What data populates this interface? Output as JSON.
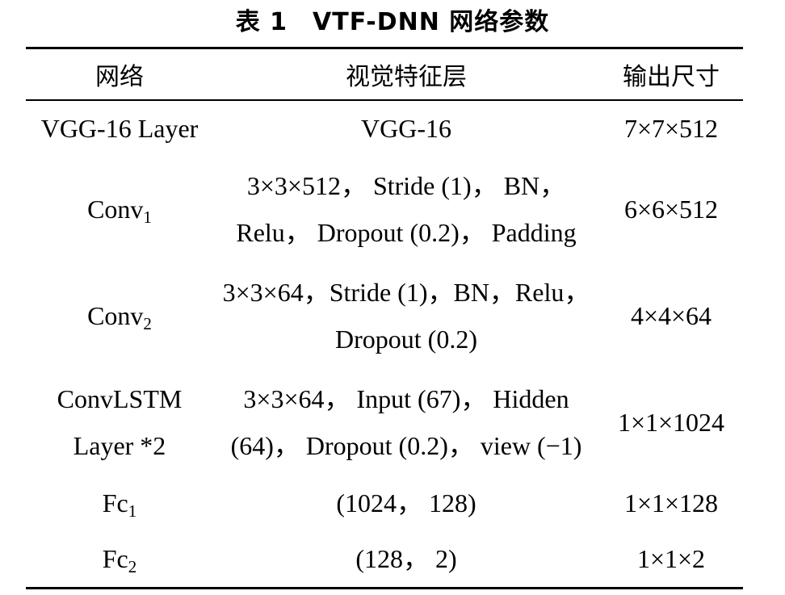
{
  "caption": "表 1　VTF-DNN 网络参数",
  "headers": {
    "network": "网络",
    "visual_layer": "视觉特征层",
    "output_size": "输出尺寸"
  },
  "rows": [
    {
      "name": "VGG-16 Layer",
      "layer": [
        "VGG-16"
      ],
      "output": "7×7×512"
    },
    {
      "name": "Conv",
      "name_sub": "1",
      "layer": [
        "3×3×512， Stride (1)， BN，",
        "Relu， Dropout (0.2)， Padding"
      ],
      "output": "6×6×512"
    },
    {
      "name": "Conv",
      "name_sub": "2",
      "layer": [
        "3×3×64，Stride (1)，BN，Relu，",
        "Dropout (0.2)"
      ],
      "output": "4×4×64"
    },
    {
      "name_lines": [
        "ConvLSTM",
        "Layer *2"
      ],
      "layer": [
        "3×3×64， Input (67)， Hidden",
        "(64)， Dropout (0.2)， view (−1)"
      ],
      "output": "1×1×1024"
    },
    {
      "name": "Fc",
      "name_sub": "1",
      "layer": [
        "(1024， 128)"
      ],
      "output": "1×1×128"
    },
    {
      "name": "Fc",
      "name_sub": "2",
      "layer": [
        "(128， 2)"
      ],
      "output": "1×1×2"
    }
  ]
}
